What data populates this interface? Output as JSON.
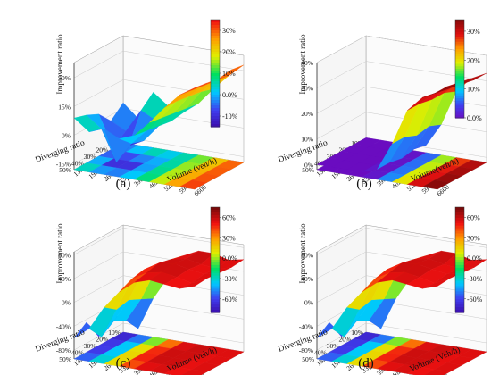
{
  "chart_data": [
    {
      "type": "surface3d",
      "caption": "(a)",
      "zlabel": "Improvement ratio",
      "ylabel": "Diverging ratio",
      "xlabel": "Volume (veh/h)",
      "x_ticks": [
        "1320",
        "1980",
        "2640",
        "3300",
        "3960",
        "4620",
        "5280",
        "5940",
        "6600"
      ],
      "y_ticks": [
        "10%",
        "20%",
        "30%",
        "40%",
        "50%"
      ],
      "z_ticks": [
        "-15%",
        "0%",
        "15%",
        "30%"
      ],
      "zlim": [
        -0.18,
        0.38
      ],
      "colorbar_ticks": [
        "-10%",
        "0.0%",
        "10%",
        "20%",
        "30%"
      ],
      "clim": [
        -0.15,
        0.35
      ],
      "cmap": [
        "#3b0aa8",
        "#3f3ff0",
        "#00c8ff",
        "#00e060",
        "#e0ee00",
        "#ff9c00",
        "#f01010"
      ],
      "surface": [
        [
          0.03,
          -0.04,
          0.11,
          0.05,
          0.03,
          0.09,
          0.18,
          0.26,
          0.33
        ],
        [
          -0.03,
          -0.07,
          0.05,
          0.01,
          0.02,
          0.1,
          0.2,
          0.27,
          0.34
        ],
        [
          0.04,
          -0.12,
          -0.1,
          -0.06,
          0.03,
          0.11,
          0.21,
          0.28,
          0.33
        ],
        [
          0.07,
          0.01,
          -0.15,
          -0.04,
          0.04,
          0.12,
          0.22,
          0.29,
          0.34
        ],
        [
          0.09,
          0.03,
          0.06,
          0.02,
          0.05,
          0.13,
          0.22,
          0.3,
          0.35
        ]
      ]
    },
    {
      "type": "surface3d",
      "caption": "(b)",
      "zlabel": "Improvement ratio",
      "ylabel": "Diverging ratio",
      "xlabel": "Volume(veh/h)",
      "x_ticks": [
        "1320",
        "1980",
        "2640",
        "3300",
        "3960",
        "4620",
        "5280",
        "5940",
        "6600"
      ],
      "y_ticks": [
        "10%",
        "20%",
        "30%",
        "40%",
        "50%"
      ],
      "z_ticks": [
        "0%",
        "10%",
        "20%",
        "30%",
        "40%"
      ],
      "zlim": [
        -0.02,
        0.4
      ],
      "colorbar_ticks": [
        "0.0%",
        "10%",
        "20%",
        "30%"
      ],
      "clim": [
        0.0,
        0.34
      ],
      "cmap": [
        "#6a0cc0",
        "#3f3ff0",
        "#00c8ff",
        "#00e060",
        "#e0ee00",
        "#ff9c00",
        "#e01010",
        "#8a0a0a"
      ],
      "surface": [
        [
          0.0,
          0.0,
          0.0,
          0.0,
          0.01,
          0.1,
          0.24,
          0.3,
          0.33
        ],
        [
          0.0,
          0.0,
          0.0,
          0.0,
          0.02,
          0.12,
          0.26,
          0.31,
          0.33
        ],
        [
          0.0,
          0.0,
          0.0,
          0.0,
          0.01,
          0.11,
          0.26,
          0.32,
          0.34
        ],
        [
          0.0,
          0.0,
          0.0,
          0.0,
          0.02,
          0.13,
          0.27,
          0.32,
          0.35
        ],
        [
          0.0,
          0.0,
          0.0,
          0.0,
          0.02,
          0.13,
          0.27,
          0.33,
          0.36
        ]
      ]
    },
    {
      "type": "surface3d",
      "caption": "(c)",
      "zlabel": "Improvement ratio",
      "ylabel": "Diverging ratio",
      "xlabel": "Volume (veh/h)",
      "x_ticks": [
        "1320",
        "1980",
        "2640",
        "3300",
        "3960",
        "4620",
        "5280",
        "5940",
        "6600"
      ],
      "y_ticks": [
        "10%",
        "20%",
        "30%",
        "40%",
        "50%"
      ],
      "z_ticks": [
        "-80%",
        "-40%",
        "0%",
        "40%",
        "80%"
      ],
      "zlim": [
        -0.95,
        0.85
      ],
      "colorbar_ticks": [
        "-60%",
        "-30%",
        "0.0%",
        "30%",
        "60%"
      ],
      "clim": [
        -0.8,
        0.75
      ],
      "cmap": [
        "#3b0aa8",
        "#3f3ff0",
        "#00c8ff",
        "#00e060",
        "#e0ee00",
        "#ff9c00",
        "#f01010",
        "#7a0a0a"
      ],
      "surface": [
        [
          -0.7,
          -0.85,
          -0.3,
          0.1,
          0.5,
          0.62,
          0.62,
          0.55,
          0.6
        ],
        [
          -0.55,
          -0.6,
          -0.2,
          0.35,
          0.55,
          0.6,
          0.55,
          0.52,
          0.58
        ],
        [
          -0.8,
          -0.5,
          -0.1,
          0.45,
          0.6,
          0.63,
          0.58,
          0.54,
          0.6
        ],
        [
          -0.45,
          -0.65,
          -0.15,
          0.4,
          0.55,
          0.6,
          0.56,
          0.5,
          0.62
        ],
        [
          -0.6,
          -0.4,
          0.0,
          0.3,
          0.5,
          0.58,
          0.55,
          0.52,
          0.6
        ]
      ]
    },
    {
      "type": "surface3d",
      "caption": "(d)",
      "zlabel": "Improvement ratio",
      "ylabel": "Diverging ratio",
      "xlabel": "Volume (Veh/h)",
      "x_ticks": [
        "1320",
        "1980",
        "2640",
        "3300",
        "3960",
        "4620",
        "5280",
        "5940",
        "6600"
      ],
      "y_ticks": [
        "10%",
        "20%",
        "30%",
        "40%",
        "50%"
      ],
      "z_ticks": [
        "-80%",
        "-40%",
        "0%",
        "40%",
        "80%"
      ],
      "zlim": [
        -0.95,
        0.85
      ],
      "colorbar_ticks": [
        "-60%",
        "-30%",
        "0.0%",
        "30%",
        "60%"
      ],
      "clim": [
        -0.8,
        0.75
      ],
      "cmap": [
        "#3b0aa8",
        "#3f3ff0",
        "#00c8ff",
        "#00e060",
        "#e0ee00",
        "#ff9c00",
        "#f01010",
        "#7a0a0a"
      ],
      "surface": [
        [
          -0.7,
          -0.85,
          -0.3,
          0.1,
          0.5,
          0.62,
          0.62,
          0.55,
          0.6
        ],
        [
          -0.55,
          -0.6,
          -0.2,
          0.35,
          0.55,
          0.6,
          0.55,
          0.52,
          0.58
        ],
        [
          -0.8,
          -0.5,
          -0.1,
          0.45,
          0.6,
          0.63,
          0.58,
          0.54,
          0.6
        ],
        [
          -0.45,
          -0.65,
          -0.15,
          0.4,
          0.55,
          0.6,
          0.56,
          0.5,
          0.62
        ],
        [
          -0.6,
          -0.4,
          0.0,
          0.3,
          0.5,
          0.58,
          0.55,
          0.52,
          0.6
        ]
      ]
    }
  ]
}
